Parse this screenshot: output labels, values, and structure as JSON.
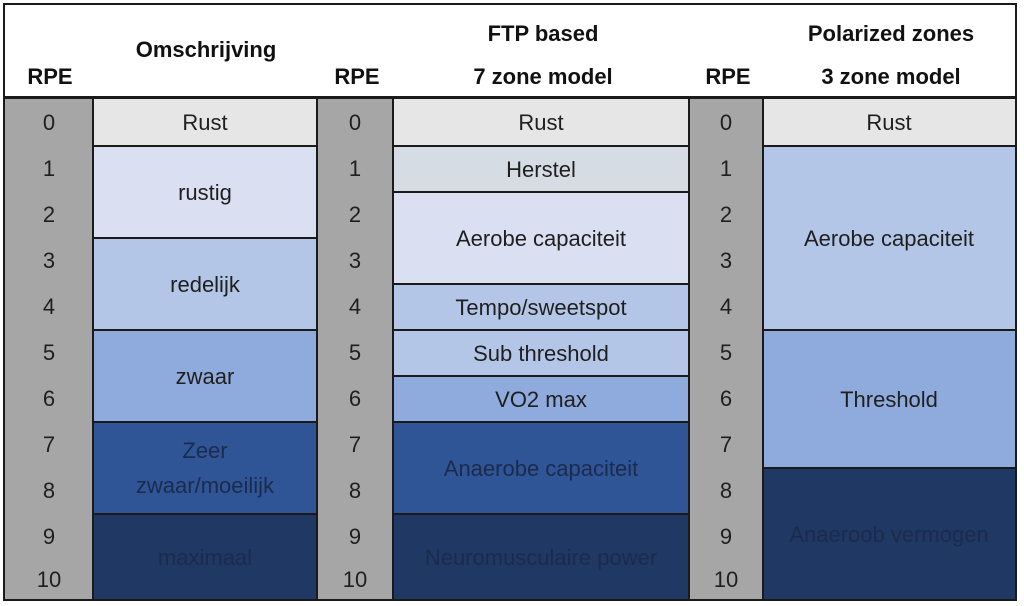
{
  "headers": {
    "rpe_1": "RPE",
    "omschrijving": "Omschrijving",
    "rpe_2": "RPE",
    "ftp_line1": "FTP based",
    "ftp_line2": "7 zone model",
    "rpe_3": "RPE",
    "pol_line1": "Polarized zones",
    "pol_line2": "3 zone model"
  },
  "rpe_values": [
    "0",
    "1",
    "2",
    "3",
    "4",
    "5",
    "6",
    "7",
    "8",
    "9",
    "10"
  ],
  "omschrijving": [
    {
      "label": "Rust",
      "color": "#e7e6e6"
    },
    {
      "label": "rustig",
      "color": "#dae0f2"
    },
    {
      "label": "redelijk",
      "color": "#b4c6e7"
    },
    {
      "label": "zwaar",
      "color": "#8faadc"
    },
    {
      "label_line1": "Zeer",
      "label_line2": "zwaar/moeilijk",
      "color": "#2f5597"
    },
    {
      "label": "maximaal",
      "color": "#203864"
    }
  ],
  "ftp_zones": [
    {
      "label": "Rust",
      "color": "#e7e6e6"
    },
    {
      "label": "Herstel",
      "color": "#d6dce4"
    },
    {
      "label": "Aerobe capaciteit",
      "color": "#dae0f2"
    },
    {
      "label": "Tempo/sweetspot",
      "color": "#b4c6e7"
    },
    {
      "label": "Sub threshold",
      "color": "#b4c6e7"
    },
    {
      "label": "VO2 max",
      "color": "#8faadc"
    },
    {
      "label": "Anaerobe capaciteit",
      "color": "#2f5597"
    },
    {
      "label": "Neuromusculaire power",
      "color": "#203864"
    }
  ],
  "polarized_zones": [
    {
      "label": "Rust",
      "color": "#e7e6e6"
    },
    {
      "label": "Aerobe capaciteit",
      "color": "#b4c6e7"
    },
    {
      "label": "Threshold",
      "color": "#8faadc"
    },
    {
      "label": "Anaeroob vermogen",
      "color": "#203864"
    }
  ],
  "colors": {
    "rpe_column": "#a6a6a6",
    "border": "#1a1a1a",
    "dark_text": "#1c2b4d"
  }
}
